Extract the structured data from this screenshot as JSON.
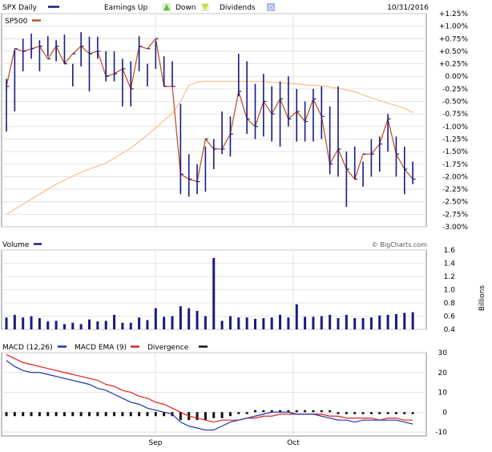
{
  "header": {
    "symbol_label": "SPX Daily",
    "earnings_label": "Earnings Up",
    "earnings_up_icon": "up-triangle-icon",
    "down_label": "Down",
    "down_icon": "down-triangle-icon",
    "dividends_label": "Dividends",
    "dividends_icon": "dividend-square-icon",
    "date": "10/31/2016",
    "comparison_label": "SP500"
  },
  "volume_panel": {
    "title": "Volume",
    "watermark": "© BigCharts.com",
    "unit_label": "Billions"
  },
  "macd_panel": {
    "legend": [
      "MACD (12,26)",
      "MACD EMA (9)",
      "Divergence"
    ]
  },
  "colors": {
    "price_bar": "#1a1a80",
    "close_line": "#c0552a",
    "sma": "#f5bf90",
    "volume_bar": "#1a1a80",
    "macd": "#2233aa",
    "ema": "#dd2222",
    "divergence": "#111111",
    "grid": "#dcdcdc",
    "dividend": "#a9b7e8",
    "earnings_up": "#66bb44",
    "earnings_down": "#ccdd44"
  },
  "chart_data": [
    {
      "type": "ohlc",
      "name": "SPX Daily price (% change)",
      "y_unit": "%",
      "ylim": [
        -3.0,
        1.25
      ],
      "y_ticks": [
        "+1.25%",
        "+1.00%",
        "+0.75%",
        "+0.50%",
        "+0.25%",
        "0.00%",
        "-0.25%",
        "-0.50%",
        "-0.75%",
        "-1.00%",
        "-1.25%",
        "-1.50%",
        "-1.75%",
        "-2.00%",
        "-2.25%",
        "-2.50%",
        "-2.75%",
        "-3.00%"
      ],
      "x_labels": [
        "Sep",
        "Oct"
      ],
      "series": [
        {
          "name": "SPX Daily",
          "high": [
            -0.05,
            0.52,
            0.75,
            0.85,
            0.72,
            0.8,
            0.72,
            0.83,
            0.25,
            0.88,
            0.79,
            0.79,
            0.5,
            0.5,
            0.35,
            0.3,
            0.8,
            0.25,
            0.7,
            0.4,
            0.3,
            -0.55,
            -1.55,
            -1.75,
            -1.4,
            -1.25,
            -0.7,
            -0.8,
            0.45,
            0.3,
            -0.15,
            0.05,
            -0.2,
            -0.1,
            0.0,
            -0.25,
            -0.5,
            -0.25,
            -0.2,
            -0.6,
            -0.2,
            -1.5,
            -1.4,
            -1.7,
            -1.25,
            -1.2,
            -0.75,
            -1.2,
            -1.4,
            -1.7
          ],
          "low": [
            -1.1,
            -0.7,
            0.1,
            0.35,
            0.1,
            0.4,
            0.3,
            0.25,
            -0.2,
            0.2,
            -0.3,
            0.35,
            -0.1,
            -0.1,
            -0.6,
            -0.6,
            0.1,
            -0.2,
            0.15,
            -0.2,
            -0.2,
            -2.35,
            -2.4,
            -2.35,
            -2.3,
            -1.85,
            -1.55,
            -1.6,
            -0.4,
            -1.15,
            -1.25,
            -1.2,
            -1.3,
            -1.4,
            -1.0,
            -1.3,
            -1.3,
            -1.3,
            -1.25,
            -1.95,
            -2.0,
            -2.6,
            -2.05,
            -2.2,
            -2.0,
            -1.9,
            -1.5,
            -2.0,
            -2.35,
            -2.15
          ],
          "close": [
            -0.2,
            0.55,
            0.5,
            0.55,
            0.6,
            0.35,
            0.6,
            0.25,
            0.45,
            0.6,
            0.45,
            0.5,
            0.0,
            0.05,
            0.15,
            -0.25,
            0.6,
            0.55,
            0.75,
            -0.2,
            -0.2,
            -1.95,
            -2.05,
            -2.1,
            -1.25,
            -1.45,
            -1.45,
            -1.15,
            -0.3,
            -0.85,
            -1.0,
            -0.5,
            -0.75,
            -0.45,
            -0.85,
            -0.7,
            -0.9,
            -0.45,
            -0.8,
            -1.75,
            -1.45,
            -1.85,
            -2.05,
            -1.55,
            -1.55,
            -1.35,
            -0.85,
            -1.55,
            -1.85,
            -2.05
          ]
        },
        {
          "name": "SP500",
          "values": [
            -2.75,
            -2.65,
            -2.55,
            -2.45,
            -2.35,
            -2.25,
            -2.15,
            -2.07,
            -1.99,
            -1.91,
            -1.85,
            -1.79,
            -1.73,
            -1.63,
            -1.53,
            -1.43,
            -1.3,
            -1.17,
            -1.03,
            -0.88,
            -0.74,
            -0.5,
            -0.18,
            -0.12,
            -0.1,
            -0.1,
            -0.1,
            -0.1,
            -0.1,
            -0.1,
            -0.1,
            -0.1,
            -0.12,
            -0.13,
            -0.14,
            -0.15,
            -0.17,
            -0.18,
            -0.19,
            -0.21,
            -0.24,
            -0.27,
            -0.31,
            -0.37,
            -0.43,
            -0.48,
            -0.54,
            -0.58,
            -0.64,
            -0.72
          ]
        }
      ]
    },
    {
      "type": "bar",
      "name": "Volume",
      "y_unit": "Billions",
      "ylim": [
        0.4,
        1.6
      ],
      "y_ticks": [
        "1.6",
        "1.4",
        "1.2",
        "1.0",
        "0.8",
        "0.6",
        "0.4"
      ],
      "values": [
        0.58,
        0.62,
        0.58,
        0.6,
        0.57,
        0.52,
        0.53,
        0.48,
        0.5,
        0.48,
        0.55,
        0.52,
        0.53,
        0.62,
        0.5,
        0.5,
        0.58,
        0.54,
        0.72,
        0.59,
        0.6,
        0.75,
        0.72,
        0.68,
        0.6,
        1.48,
        0.53,
        0.6,
        0.58,
        0.58,
        0.56,
        0.57,
        0.58,
        0.62,
        0.58,
        0.78,
        0.59,
        0.59,
        0.6,
        0.62,
        0.57,
        0.62,
        0.57,
        0.57,
        0.58,
        0.61,
        0.62,
        0.63,
        0.65,
        0.66
      ]
    },
    {
      "type": "line",
      "name": "MACD",
      "ylim": [
        -12,
        30
      ],
      "y_ticks": [
        "30",
        "20",
        "10",
        "0",
        "-10"
      ],
      "series": [
        {
          "name": "MACD (12,26)",
          "values": [
            26,
            23,
            21,
            20,
            20,
            19,
            18,
            17,
            16,
            15,
            14,
            12,
            11,
            9,
            7,
            5,
            4,
            2,
            1,
            0,
            -1,
            -5,
            -7,
            -8,
            -9,
            -9,
            -7,
            -5,
            -4,
            -3,
            -2,
            -1,
            0,
            0,
            0,
            -1,
            -1,
            -1,
            -2,
            -3,
            -4,
            -4,
            -5,
            -4,
            -4,
            -4,
            -4,
            -4,
            -5,
            -6
          ]
        },
        {
          "name": "MACD EMA (9)",
          "values": [
            29,
            27,
            25,
            24,
            23,
            22,
            21,
            20,
            19,
            18,
            17,
            16,
            14,
            13,
            11,
            10,
            8,
            7,
            5,
            4,
            2,
            0,
            -2,
            -3,
            -4,
            -5,
            -4,
            -4,
            -4,
            -3,
            -3,
            -2,
            -2,
            -1,
            -1,
            -1,
            -1,
            -1,
            -1,
            -2,
            -2,
            -3,
            -3,
            -3,
            -3,
            -4,
            -3,
            -3,
            -4,
            -4
          ]
        },
        {
          "name": "Divergence",
          "values": [
            -2,
            -2,
            -2,
            -2,
            -2,
            -2,
            -2,
            -2,
            -2,
            -2,
            -2,
            -2,
            -2,
            -2,
            -2,
            -2,
            -2,
            -2,
            -2,
            -2,
            -2,
            -4,
            -4,
            -4,
            -4,
            -3,
            -3,
            -2,
            -1,
            -1,
            1,
            1,
            1,
            1,
            1,
            1,
            1,
            1,
            1,
            1,
            -1,
            -1,
            -1,
            -1,
            -1,
            -1,
            -1,
            -1,
            -1,
            -1
          ]
        }
      ]
    }
  ]
}
